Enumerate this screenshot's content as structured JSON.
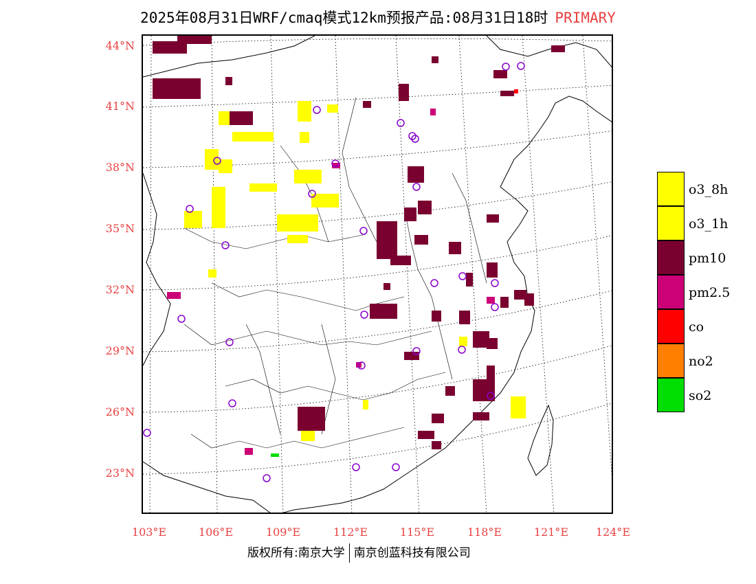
{
  "title": {
    "main": "2025年08月31日WRF/cmaq模式12km预报产品:08月31日18时",
    "tag": "PRIMARY",
    "tag_color": "#e84040"
  },
  "axes": {
    "latitude_labels": [
      "44°N",
      "41°N",
      "38°N",
      "35°N",
      "32°N",
      "29°N",
      "26°N",
      "23°N"
    ],
    "longitude_labels": [
      "103°E",
      "106°E",
      "109°E",
      "112°E",
      "115°E",
      "118°E",
      "121°E",
      "124°E"
    ],
    "label_color": "#e84040"
  },
  "legend": [
    {
      "label": "o3_8h",
      "color": "#ffff00"
    },
    {
      "label": "o3_1h",
      "color": "#ffff00"
    },
    {
      "label": "pm10",
      "color": "#7a0030"
    },
    {
      "label": "pm2.5",
      "color": "#cc0077"
    },
    {
      "label": "co",
      "color": "#ff0000"
    },
    {
      "label": "no2",
      "color": "#ff7f00"
    },
    {
      "label": "so2",
      "color": "#00dd00"
    }
  ],
  "footer": {
    "left": "版权所有:南京大学",
    "right": "南京创蓝科技有限公司"
  }
}
